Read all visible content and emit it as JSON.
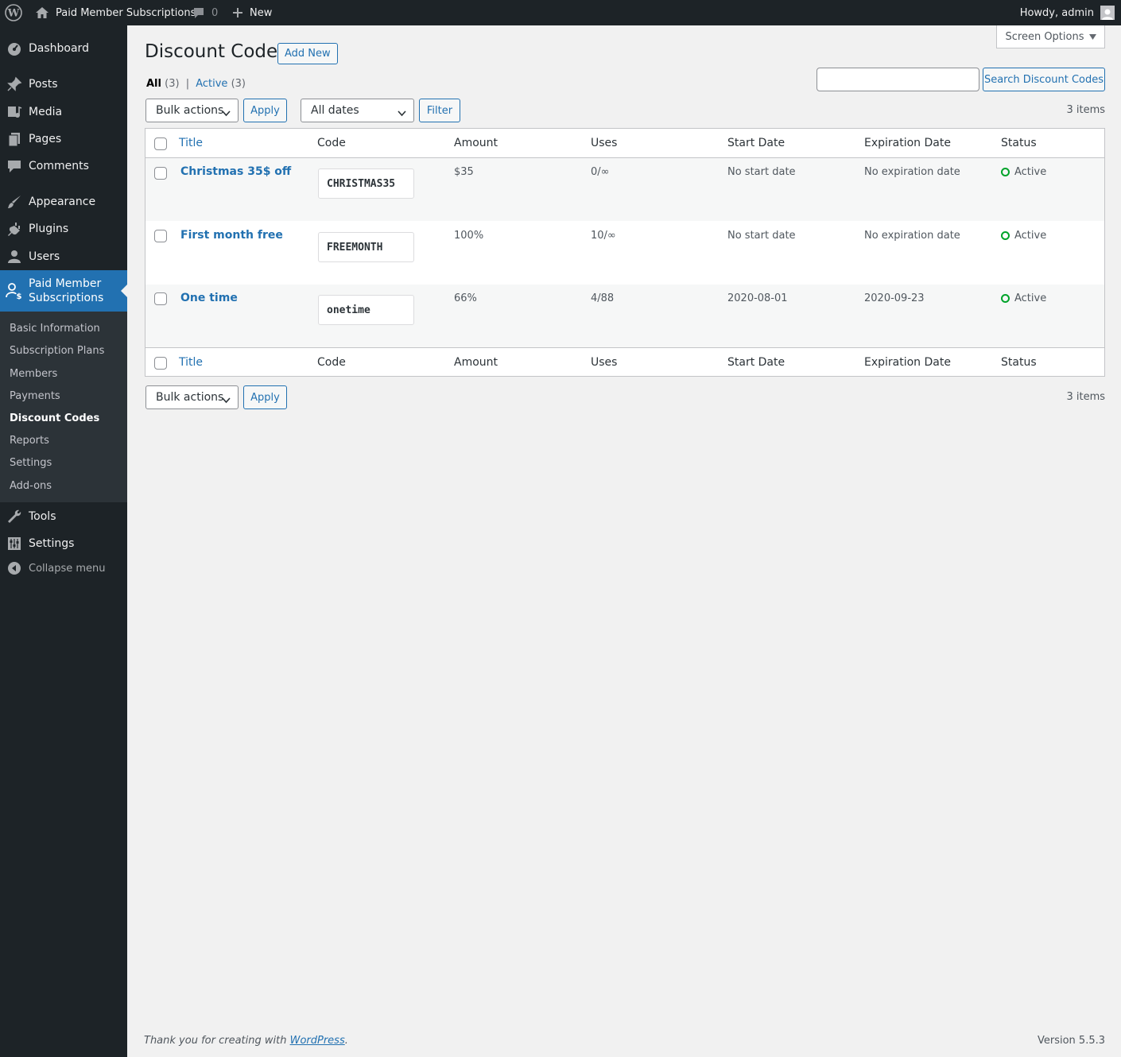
{
  "adminbar": {
    "site_name": "Paid Member Subscriptions",
    "comments_count": "0",
    "new_label": "New",
    "howdy": "Howdy, admin"
  },
  "sidebar": {
    "items": [
      {
        "label": "Dashboard",
        "icon": "dashboard-icon"
      },
      {
        "label": "Posts",
        "icon": "pin-icon"
      },
      {
        "label": "Media",
        "icon": "media-icon"
      },
      {
        "label": "Pages",
        "icon": "pages-icon"
      },
      {
        "label": "Comments",
        "icon": "comment-icon"
      },
      {
        "label": "Appearance",
        "icon": "brush-icon"
      },
      {
        "label": "Plugins",
        "icon": "plug-icon"
      },
      {
        "label": "Users",
        "icon": "user-icon"
      },
      {
        "label": "Paid Member Subscriptions",
        "icon": "member-dollar-icon"
      },
      {
        "label": "Tools",
        "icon": "wrench-icon"
      },
      {
        "label": "Settings",
        "icon": "sliders-icon"
      }
    ],
    "submenu": [
      "Basic Information",
      "Subscription Plans",
      "Members",
      "Payments",
      "Discount Codes",
      "Reports",
      "Settings",
      "Add-ons"
    ],
    "collapse_label": "Collapse menu"
  },
  "page": {
    "screen_options": "Screen Options",
    "title": "Discount Codes",
    "add_new": "Add New",
    "views": {
      "all_label": "All",
      "all_count": "(3)",
      "active_label": "Active",
      "active_count": "(3)",
      "separator": "|"
    },
    "search_button": "Search Discount Codes",
    "bulk_actions": "Bulk actions",
    "apply": "Apply",
    "dates": "All dates",
    "filter": "Filter",
    "items_count": "3 items"
  },
  "table": {
    "columns": [
      "Title",
      "Code",
      "Amount",
      "Uses",
      "Start Date",
      "Expiration Date",
      "Status"
    ],
    "rows": [
      {
        "title": "Christmas 35$ off",
        "code": "CHRISTMAS35",
        "amount": "$35",
        "uses": "0/∞",
        "start": "No start date",
        "expiration": "No expiration date",
        "status": "Active"
      },
      {
        "title": "First month free",
        "code": "FREEMONTH",
        "amount": "100%",
        "uses": "10/∞",
        "start": "No start date",
        "expiration": "No expiration date",
        "status": "Active"
      },
      {
        "title": "One time",
        "code": "onetime",
        "amount": "66%",
        "uses": "4/88",
        "start": "2020-08-01",
        "expiration": "2020-09-23",
        "status": "Active"
      }
    ]
  },
  "footer": {
    "thanks_prefix": "Thank you for creating with",
    "wordpress_link": "WordPress",
    "thanks_suffix": ".",
    "version": "Version 5.5.3"
  },
  "colors": {
    "accent": "#2271b1",
    "sidebar_bg": "#1d2327",
    "status_active": "#00a32a"
  }
}
